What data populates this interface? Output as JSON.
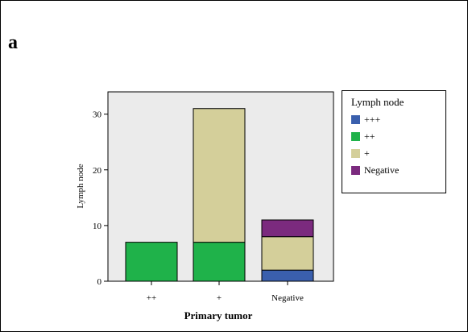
{
  "panel_label": "a",
  "chart_data": {
    "type": "bar",
    "stacked": true,
    "title": "",
    "xlabel": "Primary tumor",
    "ylabel": "Lymph node",
    "categories": [
      "++",
      "+",
      "Negative"
    ],
    "ylim": [
      0,
      34
    ],
    "yticks": [
      0,
      10,
      20,
      30
    ],
    "grid": false,
    "legend_placement": "right",
    "legend_title": "Lymph node",
    "series": [
      {
        "name": "+++",
        "color": "#3a5fad",
        "values": [
          0,
          0,
          2
        ]
      },
      {
        "name": "++",
        "color": "#1fb24a",
        "values": [
          7,
          7,
          0
        ]
      },
      {
        "name": "+",
        "color": "#d4cf9a",
        "values": [
          0,
          24,
          6
        ]
      },
      {
        "name": "Negative",
        "color": "#7b2a7e",
        "values": [
          0,
          0,
          3
        ]
      }
    ],
    "plot_background": "#ebebeb"
  }
}
